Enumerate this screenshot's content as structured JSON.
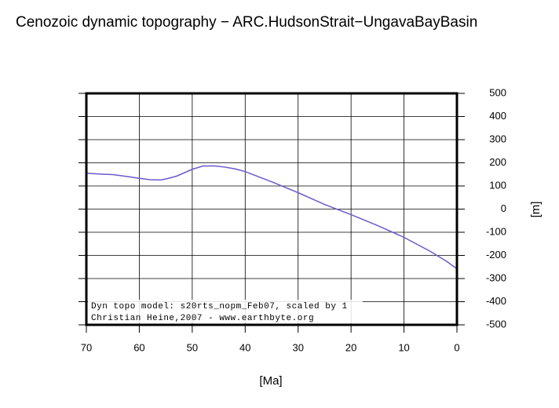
{
  "chart_data": {
    "type": "line",
    "title": "Cenozoic dynamic topography − ARC.HudsonStrait−UngavaBayBasin",
    "x_label": "[Ma]",
    "y_label": "[m]",
    "annotations": [
      "Dyn topo model: s20rts_nopm_Feb07, scaled by 1",
      "Christian Heine,2007 - www.earthbyte.org"
    ],
    "x": [
      70,
      67,
      65,
      62,
      60,
      58,
      56,
      55,
      53,
      50,
      48,
      46,
      44,
      42,
      40,
      35,
      30,
      25,
      20,
      15,
      10,
      5,
      2,
      0
    ],
    "series": [
      {
        "color": "#6a5acd",
        "values": [
          155,
          151,
          149,
          140,
          133,
          127,
          126,
          130,
          142,
          172,
          186,
          187,
          182,
          174,
          162,
          118,
          71,
          20,
          -24,
          -71,
          -122,
          -183,
          -225,
          -258
        ]
      }
    ],
    "xlim": [
      70,
      0
    ],
    "xticks": [
      70,
      60,
      50,
      40,
      30,
      20,
      10,
      0
    ],
    "ylim": [
      -500,
      500
    ],
    "yticks": [
      -500,
      -400,
      -300,
      -200,
      -100,
      0,
      100,
      200,
      300,
      400,
      500
    ],
    "grid": true
  }
}
